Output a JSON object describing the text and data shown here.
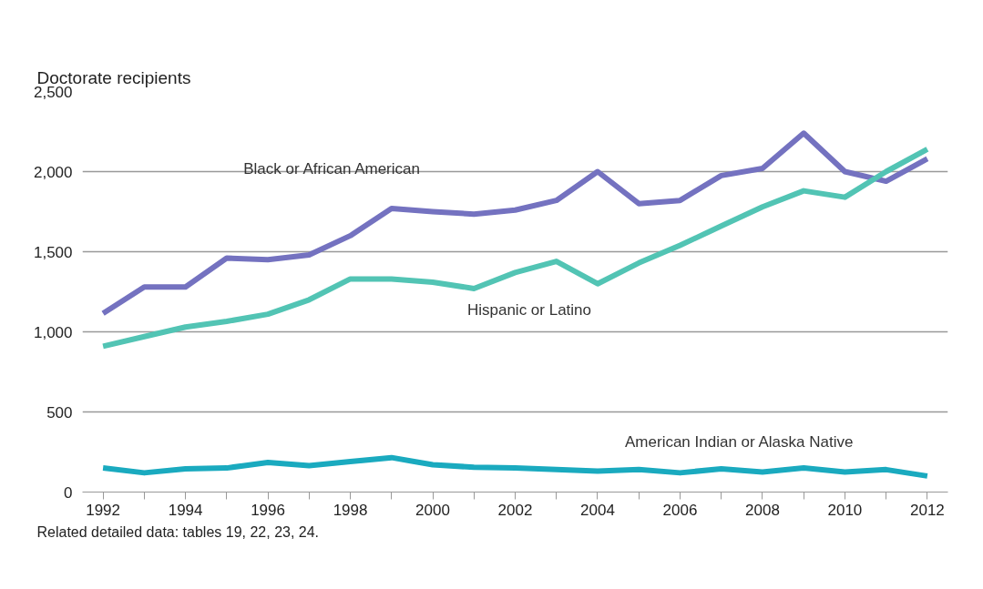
{
  "chart_data": {
    "type": "line",
    "ylabel": "Doctorate recipients",
    "x": [
      1992,
      1993,
      1994,
      1995,
      1996,
      1997,
      1998,
      1999,
      2000,
      2001,
      2002,
      2003,
      2004,
      2005,
      2006,
      2007,
      2008,
      2009,
      2010,
      2011,
      2012
    ],
    "series": [
      {
        "name": "Black or African American",
        "color": "#7472c0",
        "values": [
          1115,
          1280,
          1280,
          1460,
          1450,
          1480,
          1600,
          1770,
          1750,
          1735,
          1760,
          1820,
          2000,
          1800,
          1820,
          1975,
          2020,
          2240,
          2000,
          1940,
          2080
        ]
      },
      {
        "name": "Hispanic or Latino",
        "color": "#52c4b4",
        "values": [
          910,
          970,
          1030,
          1065,
          1110,
          1200,
          1330,
          1330,
          1310,
          1270,
          1370,
          1440,
          1300,
          1430,
          1540,
          1660,
          1780,
          1880,
          1840,
          2000,
          2140
        ]
      },
      {
        "name": "American Indian or Alaska Native",
        "color": "#1aaabf",
        "values": [
          150,
          120,
          145,
          150,
          185,
          165,
          190,
          215,
          170,
          155,
          150,
          140,
          130,
          140,
          120,
          145,
          125,
          150,
          125,
          140,
          100
        ]
      }
    ],
    "xlim": [
      1991.5,
      2012.5
    ],
    "xticks": [
      1992,
      {
        "value": 1993,
        "label": null
      },
      1994,
      {
        "value": 1995,
        "label": null
      },
      1996,
      {
        "value": 1997,
        "label": null
      },
      1998,
      {
        "value": 1999,
        "label": null
      },
      2000,
      {
        "value": 2001,
        "label": null
      },
      2002,
      {
        "value": 2003,
        "label": null
      },
      2004,
      {
        "value": 2005,
        "label": null
      },
      2006,
      {
        "value": 2007,
        "label": null
      },
      2008,
      {
        "value": 2009,
        "label": null
      },
      2010,
      {
        "value": 2011,
        "label": null
      },
      2012
    ],
    "ylim": [
      0,
      2500
    ],
    "yticks": [
      {
        "value": 0,
        "label": "0"
      },
      {
        "value": 500,
        "label": "500"
      },
      {
        "value": 1000,
        "label": "1,000"
      },
      {
        "value": 1500,
        "label": "1,500"
      },
      {
        "value": 2000,
        "label": "2,000"
      },
      {
        "value": 2500,
        "label": "2,500"
      }
    ],
    "grid": "y",
    "legend": false,
    "line_style": "solid",
    "marker": "none",
    "annotations": [
      "Related detailed data: tables 19, 22, 23, 24."
    ]
  }
}
